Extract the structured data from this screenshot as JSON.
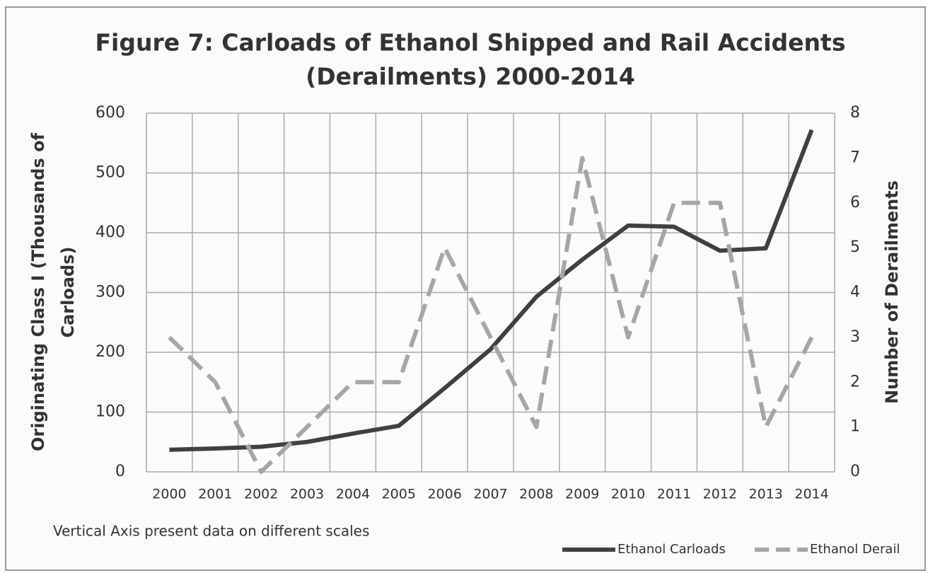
{
  "chart_data": {
    "type": "line",
    "title": [
      "Figure 7: Carloads of Ethanol Shipped and Rail Accidents",
      "(Derailments) 2000-2014"
    ],
    "ylabel": [
      "Originating Class I (Thousands of",
      "Carloads)"
    ],
    "y2label": "Number of Derailments",
    "annotation": "Vertical Axis present data on different scales",
    "categories": [
      "2000",
      "2001",
      "2002",
      "2003",
      "2004",
      "2005",
      "2006",
      "2007",
      "2008",
      "2009",
      "2010",
      "2011",
      "2012",
      "2013",
      "2014"
    ],
    "series": [
      {
        "name": "Ethanol Carloads",
        "color": "#404040",
        "dashed": false,
        "values": [
          37,
          39,
          42,
          50,
          64,
          77,
          140,
          205,
          293,
          355,
          412,
          410,
          370,
          374,
          572
        ]
      },
      {
        "name": "Ethanol Derail",
        "color": "#a6a6a6",
        "dashed": true,
        "axis": "y2",
        "values": [
          3,
          2,
          0,
          1,
          2,
          2,
          5,
          3,
          1,
          7,
          3,
          6,
          6,
          1,
          3
        ]
      }
    ],
    "ylim": [
      0,
      600
    ],
    "yticks": [
      0,
      100,
      200,
      300,
      400,
      500,
      600
    ],
    "y2lim": [
      0,
      8
    ],
    "y2ticks": [
      0,
      1,
      2,
      3,
      4,
      5,
      6,
      7,
      8
    ],
    "grid": true,
    "legend": "bottom-right"
  }
}
